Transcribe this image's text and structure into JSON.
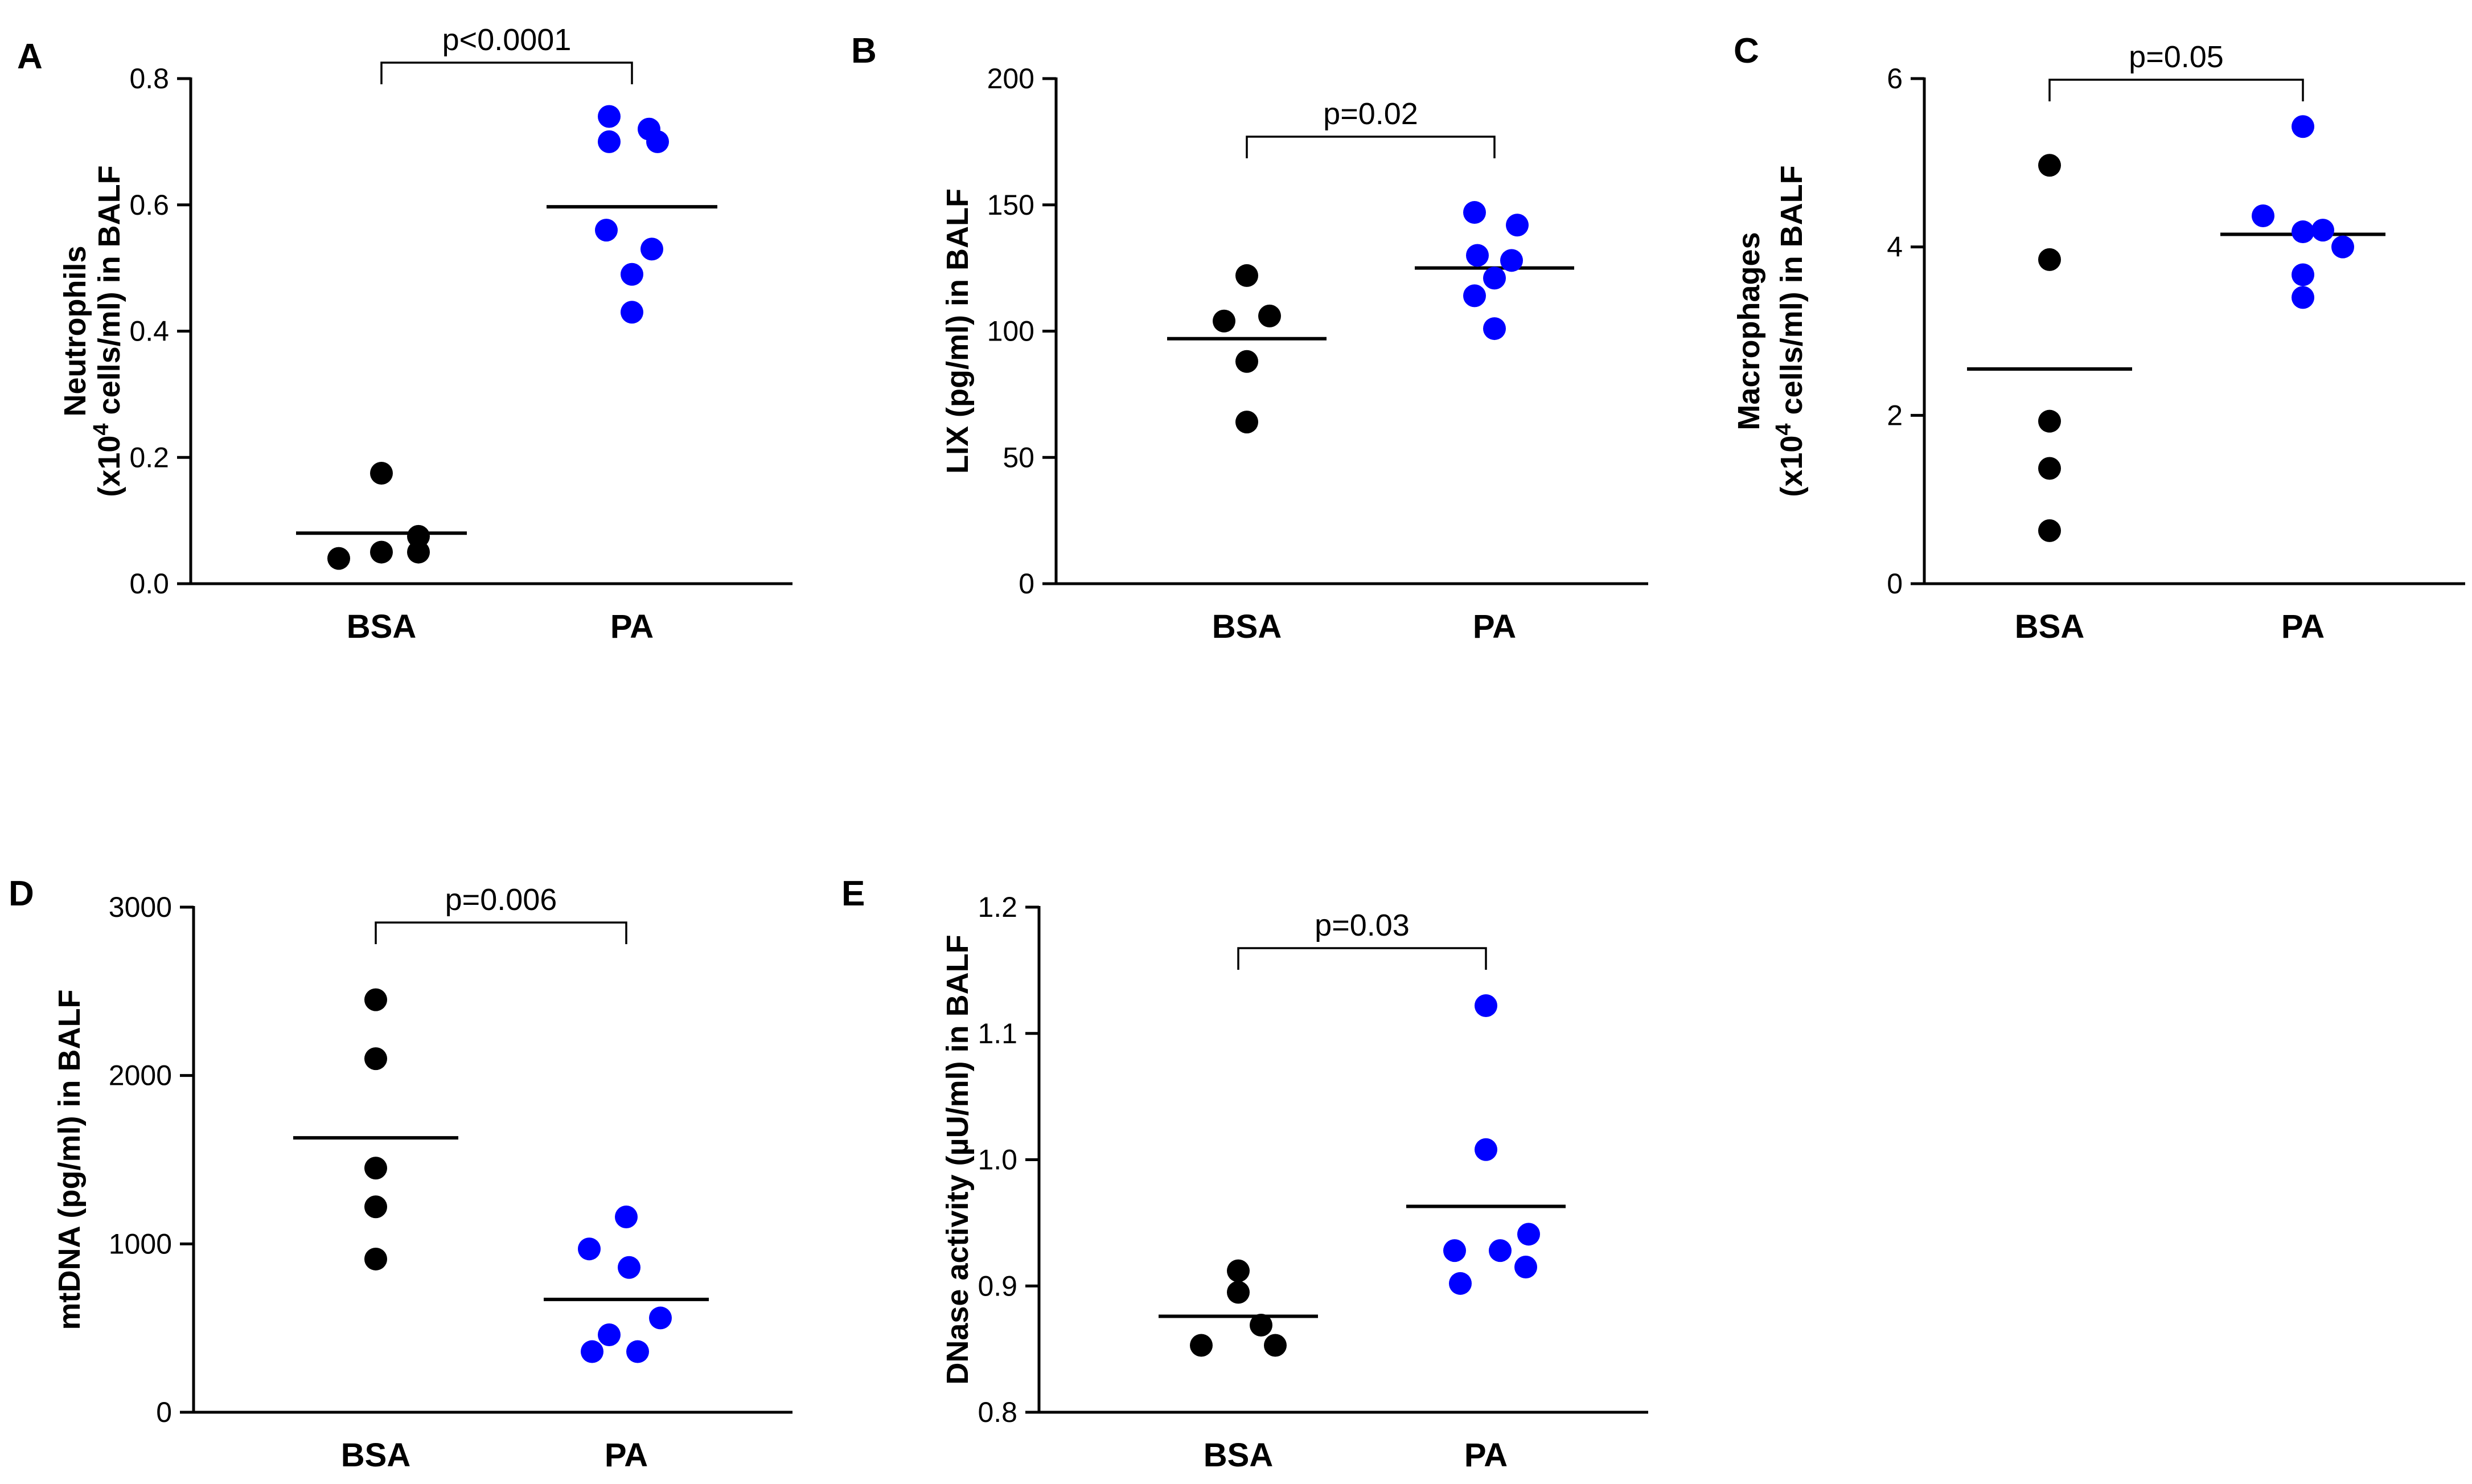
{
  "chart_data": [
    {
      "panel": "A",
      "type": "scatter",
      "ylabel_lines": [
        "Neutrophils",
        "(x10",
        "4",
        " cells/ml) in BALF"
      ],
      "categories": [
        "BSA",
        "PA"
      ],
      "yticks": [
        "0.0",
        "0.2",
        "0.4",
        "0.6",
        "0.8"
      ],
      "ylim": [
        0,
        0.8
      ],
      "series": [
        {
          "name": "BSA",
          "color": "#000000",
          "values": [
            0.04,
            0.05,
            0.05,
            0.075,
            0.175
          ],
          "mean": 0.08
        },
        {
          "name": "PA",
          "color": "#0000FF",
          "values": [
            0.74,
            0.72,
            0.7,
            0.7,
            0.56,
            0.53,
            0.49,
            0.43
          ],
          "mean": 0.597
        }
      ],
      "annotation": "p<0.0001"
    },
    {
      "panel": "B",
      "type": "scatter",
      "ylabel_lines": [
        "LIX (pg/ml) in BALF"
      ],
      "categories": [
        "BSA",
        "PA"
      ],
      "yticks": [
        "0",
        "50",
        "100",
        "150",
        "200"
      ],
      "ylim": [
        0,
        200
      ],
      "series": [
        {
          "name": "BSA",
          "color": "#000000",
          "values": [
            122,
            106,
            104,
            88,
            64
          ],
          "mean": 97
        },
        {
          "name": "PA",
          "color": "#0000FF",
          "values": [
            147,
            142,
            130,
            128,
            121,
            114,
            101
          ],
          "mean": 125
        }
      ],
      "annotation": "p=0.02"
    },
    {
      "panel": "C",
      "type": "scatter",
      "ylabel_lines": [
        "Macrophages",
        "(x10",
        "4",
        " cells/ml) in BALF"
      ],
      "categories": [
        "BSA",
        "PA"
      ],
      "yticks": [
        "0",
        "2",
        "4",
        "6"
      ],
      "ylim": [
        0,
        6
      ],
      "series": [
        {
          "name": "BSA",
          "color": "#000000",
          "values": [
            4.97,
            3.85,
            1.93,
            1.37,
            0.63
          ],
          "mean": 2.55
        },
        {
          "name": "PA",
          "color": "#0000FF",
          "values": [
            5.43,
            4.37,
            4.2,
            4.18,
            4.0,
            3.67,
            3.4
          ],
          "mean": 4.15
        }
      ],
      "annotation": "p=0.05"
    },
    {
      "panel": "D",
      "type": "scatter",
      "ylabel_lines": [
        "mtDNA (pg/ml) in BALF"
      ],
      "categories": [
        "BSA",
        "PA"
      ],
      "yticks": [
        "0",
        "1000",
        "2000",
        "3000"
      ],
      "ylim": [
        0,
        3000
      ],
      "series": [
        {
          "name": "BSA",
          "color": "#000000",
          "values": [
            2450,
            2100,
            1450,
            1220,
            910
          ],
          "mean": 1630
        },
        {
          "name": "PA",
          "color": "#0000FF",
          "values": [
            1160,
            970,
            860,
            560,
            460,
            360,
            360
          ],
          "mean": 670
        }
      ],
      "annotation": "p=0.006"
    },
    {
      "panel": "E",
      "type": "scatter",
      "ylabel_lines": [
        "DNase activity (µU/ml) in BALF"
      ],
      "categories": [
        "BSA",
        "PA"
      ],
      "yticks": [
        "0.8",
        "0.9",
        "1.0",
        "1.1",
        "1.2"
      ],
      "ylim": [
        0.8,
        1.2
      ],
      "series": [
        {
          "name": "BSA",
          "color": "#000000",
          "values": [
            0.912,
            0.895,
            0.869,
            0.853,
            0.853
          ],
          "mean": 0.876
        },
        {
          "name": "PA",
          "color": "#0000FF",
          "values": [
            1.122,
            1.008,
            0.941,
            0.928,
            0.928,
            0.915,
            0.902
          ],
          "mean": 0.963
        }
      ],
      "annotation": "p=0.03"
    }
  ]
}
